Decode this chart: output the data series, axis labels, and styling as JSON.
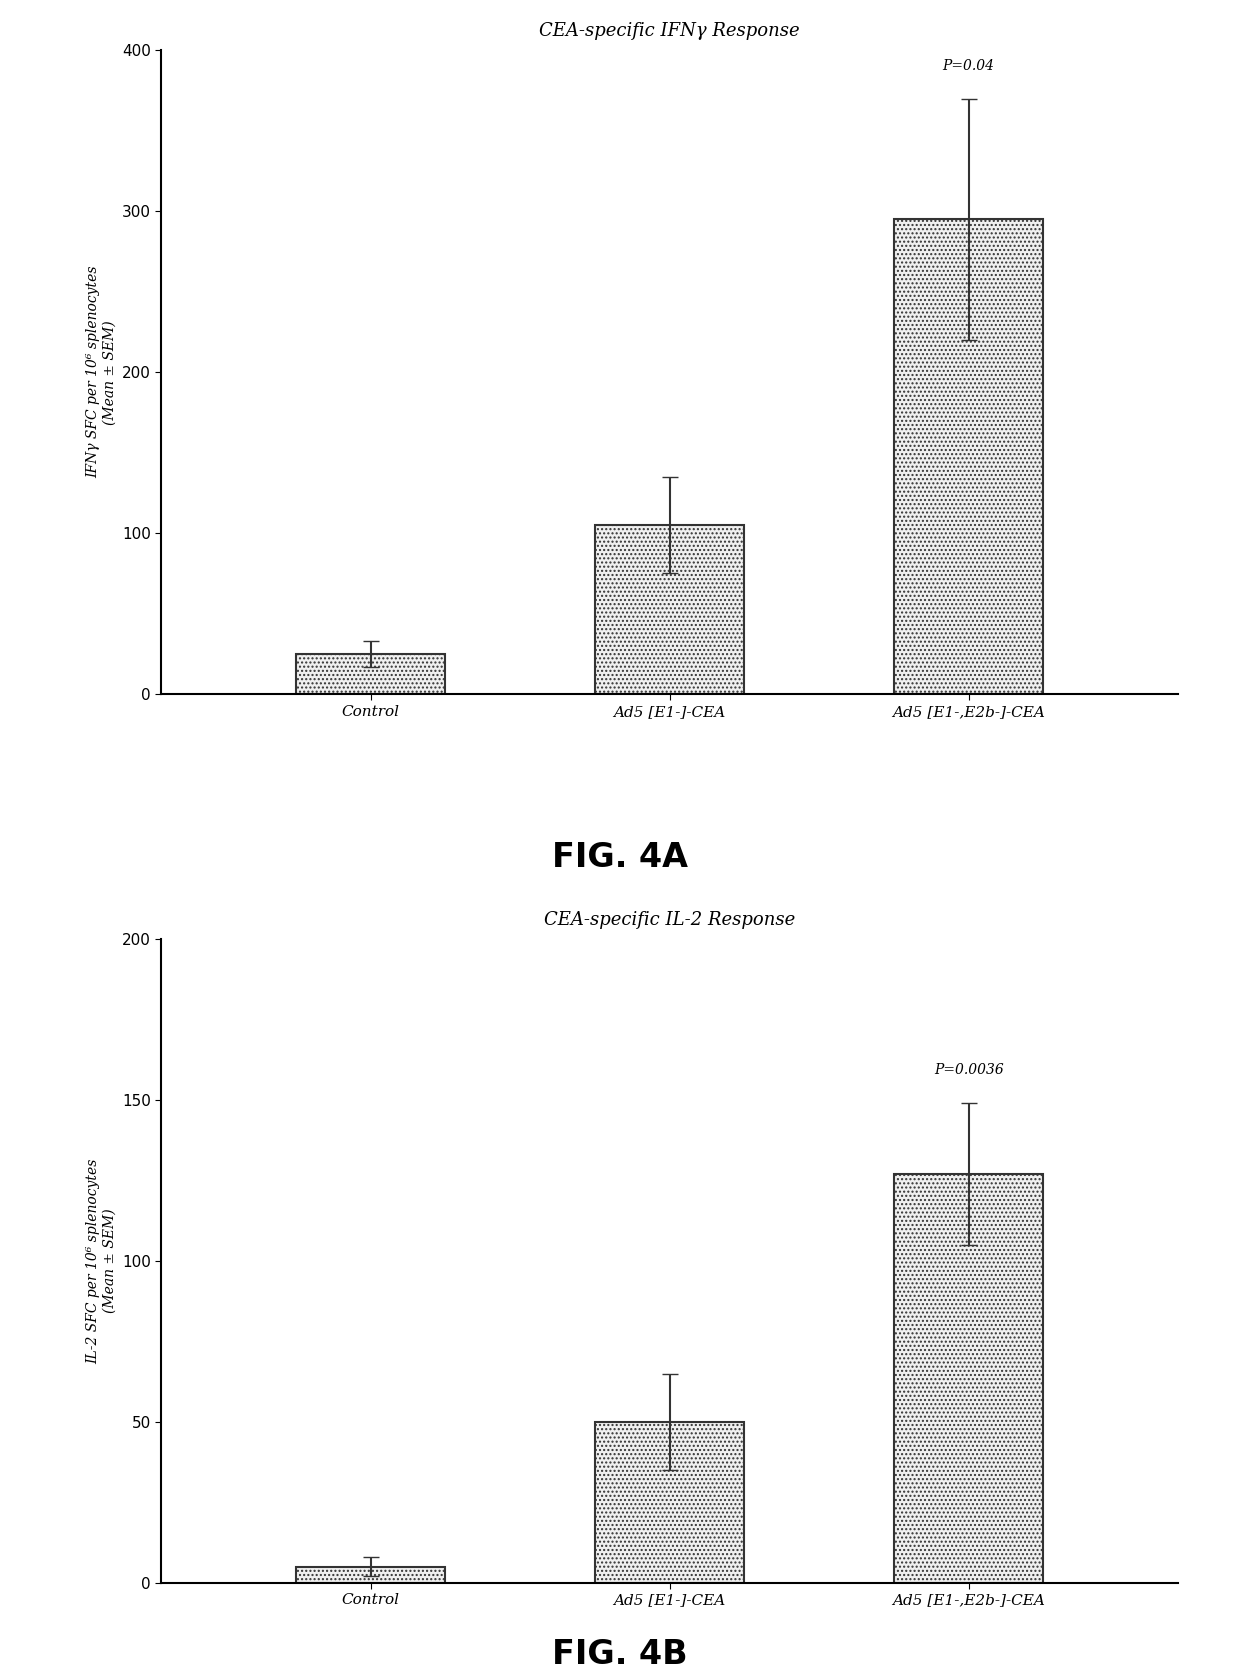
{
  "fig4a": {
    "title": "CEA-specific IFNγ Response",
    "categories": [
      "Control",
      "Ad5 [E1-]-CEA",
      "Ad5 [E1-,E2b-]-CEA"
    ],
    "values": [
      25,
      105,
      295
    ],
    "errors": [
      8,
      30,
      75
    ],
    "ylabel_line1": "IFNγ SFC per 10⁶ splenocytes",
    "ylabel_line2": "(Mean ± SEM)",
    "ylim": [
      0,
      400
    ],
    "yticks": [
      0,
      100,
      200,
      300,
      400
    ],
    "pvalue_text": "P=0.04",
    "pvalue_bar_idx": 2,
    "fig_label": "FIG. 4A"
  },
  "fig4b": {
    "title": "CEA-specific IL-2 Response",
    "categories": [
      "Control",
      "Ad5 [E1-]-CEA",
      "Ad5 [E1-,E2b-]-CEA"
    ],
    "values": [
      5,
      50,
      127
    ],
    "errors": [
      3,
      15,
      22
    ],
    "ylabel_line1": "IL-2 SFC per 10⁶ splenocytes",
    "ylabel_line2": "(Mean ± SEM)",
    "ylim": [
      0,
      200
    ],
    "yticks": [
      0,
      50,
      100,
      150,
      200
    ],
    "pvalue_text": "P=0.0036",
    "pvalue_bar_idx": 2,
    "fig_label": "FIG. 4B"
  },
  "bar_color": "#f0f0f0",
  "bar_edgecolor": "#333333",
  "bar_hatch": "....",
  "bar_width": 0.5,
  "errorbar_color": "#333333",
  "errorbar_capsize": 6,
  "errorbar_linewidth": 1.5,
  "background_color": "white",
  "title_fontsize": 13,
  "ylabel_fontsize": 10,
  "tick_fontsize": 11,
  "xlabel_fontsize": 11,
  "figlabel_fontsize": 24,
  "pvalue_fontsize": 10
}
